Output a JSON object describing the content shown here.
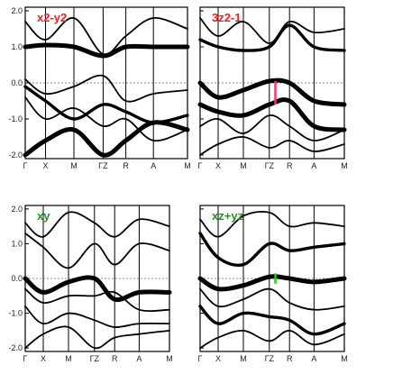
{
  "chart_data": [
    {
      "type": "line",
      "title": "x2-y2",
      "title_color": "#ff1a1a",
      "ylim": [
        -2.1,
        2.1
      ],
      "yticks": [
        2.0,
        1.0,
        0.0,
        -1.0,
        -2.0
      ],
      "ytick_labels": [
        "2.0",
        "1.0",
        "0.0",
        "-1.0",
        "-2.0"
      ],
      "x_labels": [
        "Γ",
        "X",
        "M",
        "ΓZ",
        "R",
        "A",
        "M"
      ],
      "fermi_level": 0.0,
      "marker": null,
      "bands": [
        {
          "x": [
            0,
            1,
            2,
            3,
            4,
            5,
            6
          ],
          "y": [
            1.7,
            1.2,
            1.8,
            0.8,
            1.3,
            1.8,
            1.5
          ],
          "weight": 1
        },
        {
          "x": [
            0,
            1,
            2,
            3,
            4,
            5,
            6
          ],
          "y": [
            1.0,
            1.05,
            1.0,
            0.75,
            1.0,
            1.0,
            1.0
          ],
          "weight": 3
        },
        {
          "x": [
            0,
            1,
            2,
            3,
            4,
            5,
            6
          ],
          "y": [
            0.1,
            -0.3,
            -0.1,
            0.2,
            -0.5,
            -0.3,
            -0.2
          ],
          "weight": 1
        },
        {
          "x": [
            0,
            1,
            2,
            3,
            4,
            5,
            6
          ],
          "y": [
            -0.1,
            -0.5,
            -1.0,
            -0.6,
            -0.8,
            -1.1,
            -0.9
          ],
          "weight": 2
        },
        {
          "x": [
            0,
            1,
            2,
            3,
            4,
            5,
            6
          ],
          "y": [
            -0.4,
            -1.0,
            -0.7,
            -1.2,
            -1.0,
            -1.6,
            -1.3
          ],
          "weight": 1
        },
        {
          "x": [
            0,
            1,
            2,
            3,
            4,
            5,
            6
          ],
          "y": [
            -2.0,
            -1.6,
            -1.3,
            -2.0,
            -1.6,
            -1.1,
            -1.3
          ],
          "weight": 3
        }
      ]
    },
    {
      "type": "line",
      "title": "3z2-1",
      "title_color": "#ff1a1a",
      "ylim": [
        -2.1,
        2.1
      ],
      "yticks": [
        2.0,
        1.0,
        0.0,
        -1.0,
        -2.0
      ],
      "ytick_labels": [],
      "x_labels": [
        "Γ",
        "X",
        "M",
        "ΓZ",
        "R",
        "A",
        "M"
      ],
      "fermi_level": 0.0,
      "marker": {
        "x": 3.3,
        "y1": -0.6,
        "y2": 0.05,
        "color": "#ff3366"
      },
      "bands": [
        {
          "x": [
            0,
            1,
            2,
            3,
            4,
            5,
            6
          ],
          "y": [
            1.8,
            1.3,
            1.7,
            1.1,
            1.7,
            1.4,
            1.5
          ],
          "weight": 1
        },
        {
          "x": [
            0,
            1,
            2,
            3,
            4,
            5,
            6
          ],
          "y": [
            1.2,
            1.0,
            0.9,
            1.0,
            1.6,
            1.0,
            0.9
          ],
          "weight": 2
        },
        {
          "x": [
            0,
            1,
            2,
            3,
            4,
            5,
            6
          ],
          "y": [
            0.0,
            -0.4,
            -0.2,
            0.05,
            0.0,
            -0.5,
            -0.6
          ],
          "weight": 3
        },
        {
          "x": [
            0,
            1,
            2,
            3,
            4,
            5,
            6
          ],
          "y": [
            -0.6,
            -0.8,
            -0.9,
            -0.6,
            -0.5,
            -1.2,
            -1.3
          ],
          "weight": 3
        },
        {
          "x": [
            0,
            1,
            2,
            3,
            4,
            5,
            6
          ],
          "y": [
            -1.2,
            -1.0,
            -1.4,
            -0.9,
            -1.2,
            -1.6,
            -1.3
          ],
          "weight": 1
        },
        {
          "x": [
            0,
            1,
            2,
            3,
            4,
            5,
            6
          ],
          "y": [
            -2.0,
            -1.7,
            -1.5,
            -1.8,
            -1.6,
            -1.9,
            -1.7
          ],
          "weight": 1
        }
      ]
    },
    {
      "type": "line",
      "title": "xy",
      "title_color": "#1a9a1a",
      "ylim": [
        -2.1,
        2.1
      ],
      "yticks": [
        2.0,
        1.0,
        0.0,
        -1.0,
        -2.0
      ],
      "ytick_labels": [
        "2.0",
        "1.0",
        "0.0",
        "-1.0",
        "-2.0"
      ],
      "x_labels": [
        "Γ",
        "X",
        "M",
        "ΓZ",
        "R",
        "A",
        "M"
      ],
      "fermi_level": 0.0,
      "marker": null,
      "bands": [
        {
          "x": [
            0,
            1,
            2,
            3,
            4,
            5,
            6
          ],
          "y": [
            1.6,
            1.2,
            1.9,
            1.6,
            1.2,
            1.7,
            1.5
          ],
          "weight": 1
        },
        {
          "x": [
            0,
            1,
            2,
            3,
            4,
            5,
            6
          ],
          "y": [
            1.3,
            0.9,
            0.3,
            1.0,
            0.4,
            1.0,
            0.8
          ],
          "weight": 1
        },
        {
          "x": [
            0,
            1,
            2,
            3,
            4,
            5,
            6
          ],
          "y": [
            0.0,
            -0.4,
            -0.1,
            0.0,
            -0.6,
            -0.4,
            -0.4
          ],
          "weight": 3
        },
        {
          "x": [
            0,
            1,
            2,
            3,
            4,
            5,
            6
          ],
          "y": [
            -0.3,
            -0.7,
            -0.5,
            -0.5,
            -0.4,
            -0.9,
            -0.9
          ],
          "weight": 1
        },
        {
          "x": [
            0,
            1,
            2,
            3,
            4,
            5,
            6
          ],
          "y": [
            -0.8,
            -1.3,
            -1.0,
            -1.2,
            -1.4,
            -1.3,
            -1.3
          ],
          "weight": 1
        },
        {
          "x": [
            0,
            1,
            2,
            3,
            4,
            5,
            6
          ],
          "y": [
            -2.0,
            -1.6,
            -1.4,
            -2.0,
            -1.7,
            -1.6,
            -1.5
          ],
          "weight": 1
        }
      ]
    },
    {
      "type": "line",
      "title": "xz+yz",
      "title_color": "#1a9a1a",
      "ylim": [
        -2.1,
        2.1
      ],
      "yticks": [
        2.0,
        1.0,
        0.0,
        -1.0,
        -2.0
      ],
      "ytick_labels": [],
      "x_labels": [
        "Γ",
        "X",
        "M",
        "ΓZ",
        "R",
        "A",
        "M"
      ],
      "fermi_level": 0.0,
      "marker": {
        "x": 3.3,
        "y1": -0.15,
        "y2": 0.15,
        "color": "#22cc22"
      },
      "bands": [
        {
          "x": [
            0,
            1,
            2,
            3,
            4,
            5,
            6
          ],
          "y": [
            1.7,
            1.2,
            1.8,
            1.9,
            1.5,
            1.6,
            1.5
          ],
          "weight": 1
        },
        {
          "x": [
            0,
            1,
            2,
            3,
            4,
            5,
            6
          ],
          "y": [
            1.3,
            0.6,
            0.4,
            1.0,
            0.8,
            0.9,
            1.0
          ],
          "weight": 2
        },
        {
          "x": [
            0,
            1,
            2,
            3,
            4,
            5,
            6
          ],
          "y": [
            0.0,
            -0.3,
            -0.2,
            0.05,
            0.0,
            -0.1,
            0.0
          ],
          "weight": 3
        },
        {
          "x": [
            0,
            1,
            2,
            3,
            4,
            5,
            6
          ],
          "y": [
            -0.3,
            -0.8,
            -0.6,
            -0.3,
            -0.7,
            -0.9,
            -0.8
          ],
          "weight": 1
        },
        {
          "x": [
            0,
            1,
            2,
            3,
            4,
            5,
            6
          ],
          "y": [
            -0.8,
            -1.3,
            -1.0,
            -1.1,
            -1.2,
            -1.6,
            -1.3
          ],
          "weight": 2
        },
        {
          "x": [
            0,
            1,
            2,
            3,
            4,
            5,
            6
          ],
          "y": [
            -2.0,
            -1.7,
            -1.5,
            -1.8,
            -1.5,
            -1.9,
            -1.6
          ],
          "weight": 1
        }
      ]
    }
  ]
}
